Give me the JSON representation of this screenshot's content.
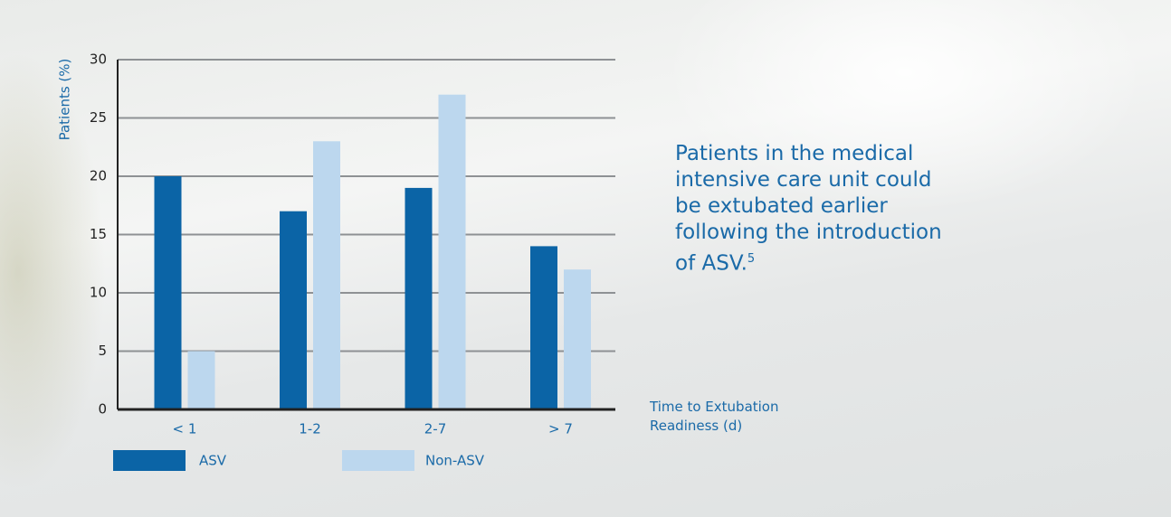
{
  "chart_data": {
    "type": "bar",
    "y_label": "Patients (%)",
    "x_label": "Time to Extubation Readiness (d)",
    "annotation": "Patients in the medical intensive care unit could be extubated earlier following the introduction of ASV.",
    "annotation_superscript": "5",
    "categories": [
      "< 1",
      "1-2",
      "2-7",
      "> 7"
    ],
    "series": [
      {
        "name": "ASV",
        "color": "#0b64a6",
        "values": [
          20,
          17,
          19,
          14
        ]
      },
      {
        "name": "Non-ASV",
        "color": "#bcd7ee",
        "values": [
          5,
          23,
          27,
          12
        ]
      }
    ],
    "ylim": [
      0,
      30
    ],
    "yticks": [
      0,
      5,
      10,
      15,
      20,
      25,
      30
    ],
    "grid": true
  }
}
